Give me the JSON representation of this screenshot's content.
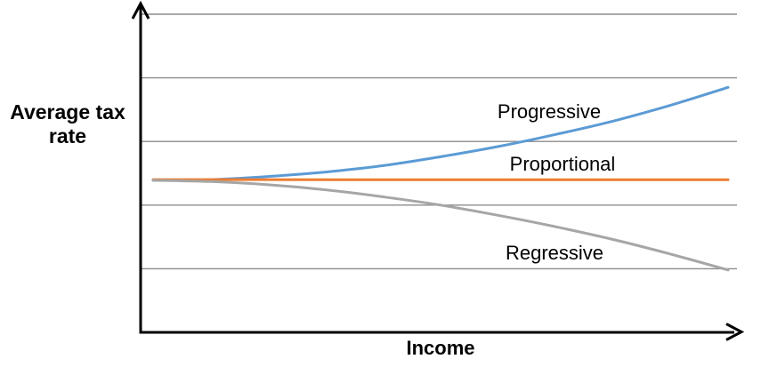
{
  "chart_data": {
    "type": "line",
    "title": "",
    "ylabel": "Average tax rate",
    "xlabel": "Income",
    "x_range": [
      0,
      1
    ],
    "y_range": [
      0,
      5.2
    ],
    "grid": true,
    "gridlines_y": [
      1,
      2,
      3,
      4,
      5
    ],
    "axes": "arrowed, no tick labels",
    "legend_position": "inline-annotations",
    "grid_color": "#8C8C8C",
    "axis_color": "#000000",
    "text_color": "#000000",
    "series": [
      {
        "name": "Progressive",
        "color": "#5B9BD5",
        "x": [
          0,
          0.1,
          0.2,
          0.3,
          0.4,
          0.5,
          0.6,
          0.7,
          0.8,
          0.9,
          1.0
        ],
        "y": [
          2.39,
          2.4,
          2.45,
          2.52,
          2.62,
          2.76,
          2.92,
          3.11,
          3.32,
          3.57,
          3.85
        ]
      },
      {
        "name": "Proportional",
        "color": "#ED7D31",
        "x": [
          0,
          0.5,
          1.0
        ],
        "y": [
          2.4,
          2.4,
          2.4
        ]
      },
      {
        "name": "Regressive",
        "color": "#A6A6A6",
        "x": [
          0,
          0.1,
          0.2,
          0.3,
          0.4,
          0.5,
          0.6,
          0.7,
          0.8,
          0.9,
          1.0
        ],
        "y": [
          2.39,
          2.37,
          2.32,
          2.24,
          2.13,
          2.0,
          1.84,
          1.66,
          1.46,
          1.23,
          0.98
        ]
      }
    ]
  }
}
